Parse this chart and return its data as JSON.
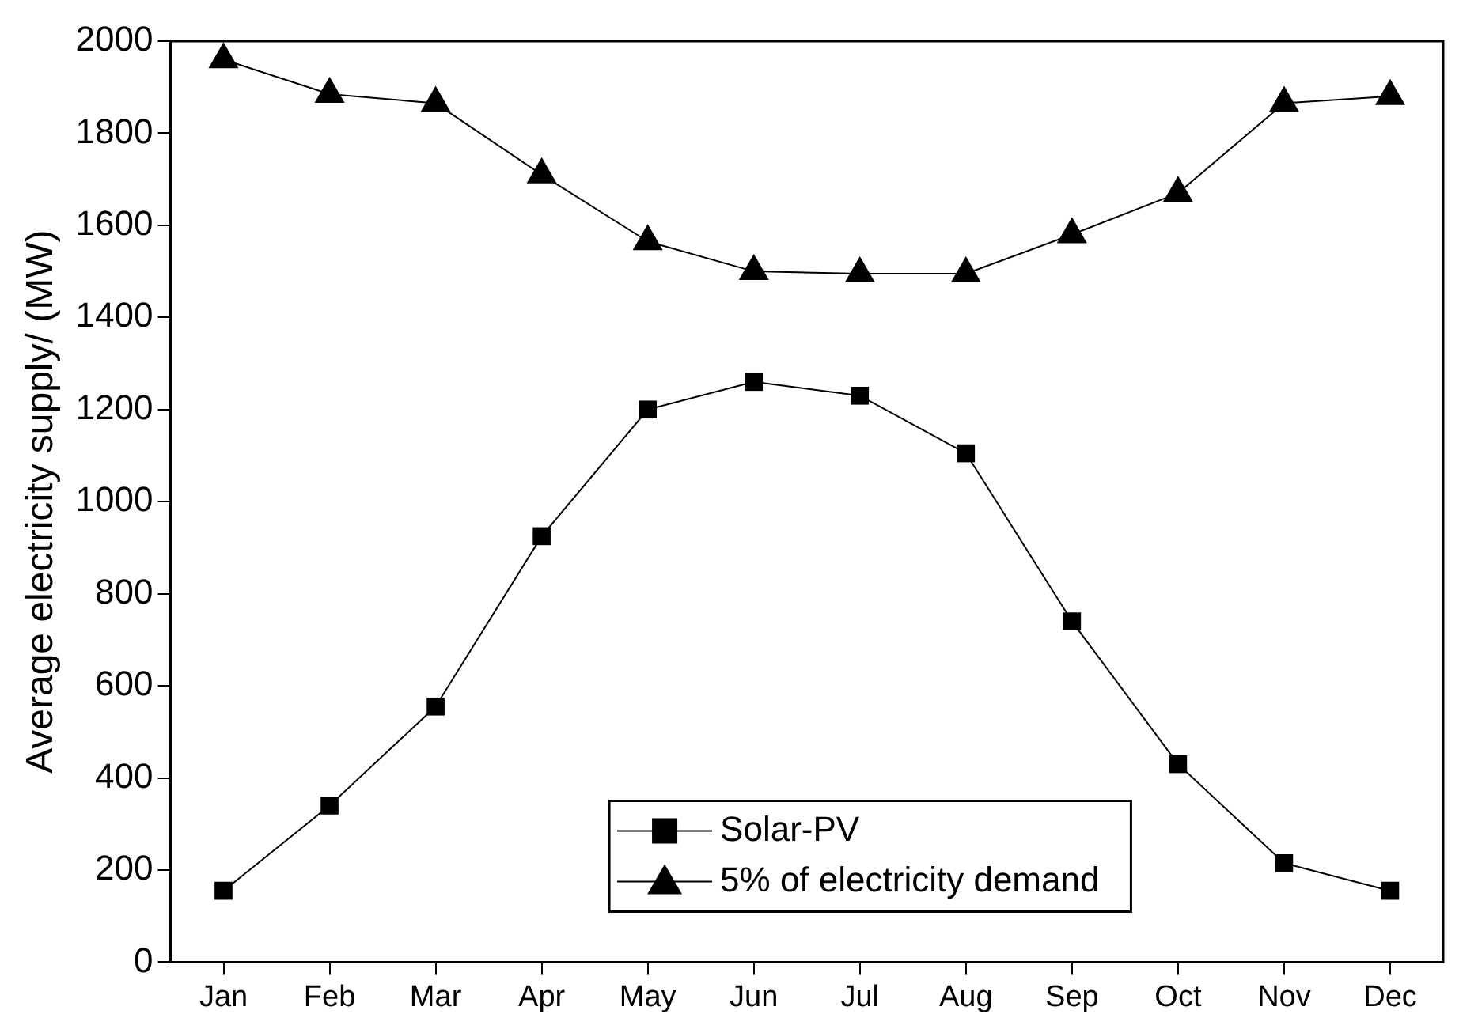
{
  "chart_data": {
    "type": "line",
    "ylabel": "Average electricity supply/ (MW)",
    "categories": [
      "Jan",
      "Feb",
      "Mar",
      "Apr",
      "May",
      "Jun",
      "Jul",
      "Aug",
      "Sep",
      "Oct",
      "Nov",
      "Dec"
    ],
    "series": [
      {
        "name": "Solar-PV",
        "color": "#000000",
        "marker": "square",
        "values": [
          155,
          340,
          555,
          925,
          1200,
          1260,
          1230,
          1105,
          740,
          430,
          215,
          155
        ]
      },
      {
        "name": "5% of electricity demand",
        "color": "#000000",
        "marker": "triangle",
        "values": [
          1960,
          1885,
          1865,
          1710,
          1565,
          1500,
          1495,
          1495,
          1580,
          1670,
          1865,
          1880
        ]
      }
    ],
    "ylim": [
      0,
      2000
    ],
    "yticks": [
      0,
      200,
      400,
      600,
      800,
      1000,
      1200,
      1400,
      1600,
      1800,
      2000
    ],
    "grid": false,
    "legend": "bottom",
    "line_style": "solid"
  }
}
